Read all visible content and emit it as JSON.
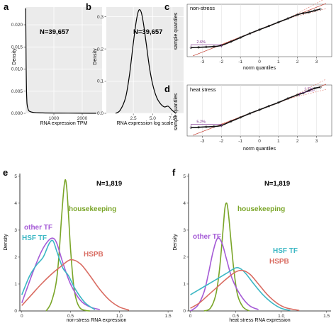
{
  "chart_data": [
    {
      "panel": "a",
      "type": "line",
      "xlabel": "RNA expression TPM",
      "ylabel": "Density",
      "annotation": "N=39,657",
      "xlim": [
        0,
        2700
      ],
      "ylim": [
        0,
        0.024
      ],
      "xticks": [
        1000,
        2000
      ],
      "yticks": [
        0.0,
        0.005,
        0.01,
        0.015,
        0.02
      ],
      "yticklabels": [
        "0.000",
        "0.005",
        "0.010",
        "0.015",
        "0.020"
      ],
      "series": [
        {
          "x": [
            0,
            8,
            20,
            40,
            80,
            200,
            600,
            1500,
            2500
          ],
          "y": [
            0.0235,
            0.0225,
            0.012,
            0.004,
            0.0012,
            0.0003,
            0.0001,
            5e-05,
            2e-05
          ]
        }
      ]
    },
    {
      "panel": "b",
      "type": "line",
      "xlabel": "RNA expression log scale",
      "ylabel": "Density",
      "annotation": "N=39,657",
      "xlim": [
        -1,
        9
      ],
      "ylim": [
        0,
        0.33
      ],
      "xticks": [
        2.5,
        5.0,
        7.5
      ],
      "xticklabels": [
        "2.5",
        "5.0",
        "7.5"
      ],
      "yticks": [
        0.0,
        0.1,
        0.2,
        0.3
      ],
      "yticklabels": [
        "0.0",
        "0.1",
        "0.2",
        "0.3"
      ],
      "series": [
        {
          "x": [
            0.2,
            0.8,
            1.5,
            2.0,
            2.5,
            2.9,
            3.2,
            3.5,
            3.8,
            4.2,
            4.6,
            5.0,
            5.5,
            6.0,
            6.5,
            7.0,
            7.5,
            8.0
          ],
          "y": [
            0.0,
            0.01,
            0.05,
            0.12,
            0.22,
            0.29,
            0.32,
            0.315,
            0.28,
            0.21,
            0.14,
            0.09,
            0.05,
            0.03,
            0.02,
            0.022,
            0.01,
            0.0
          ]
        }
      ]
    },
    {
      "panel": "c",
      "type": "scatter",
      "facet": "non-stress",
      "xlabel": "norm quantiles",
      "ylabel": "sample quantiles",
      "xlim": [
        -3.8,
        3.8
      ],
      "ylim": [
        -3.6,
        3.4
      ],
      "xticks": [
        -3,
        -2,
        -1,
        0,
        1,
        2,
        3
      ],
      "xticklabels": [
        "-3",
        "-2",
        "-1",
        "0",
        "1",
        "2",
        "3"
      ],
      "annotations": [
        "2.6%"
      ],
      "series": [
        {
          "x": [
            -3.6,
            -3.2,
            -2.8,
            -2.4,
            -2.0,
            -1.5,
            -1.0,
            -0.5,
            0.0,
            0.5,
            1.0,
            1.5,
            2.0,
            2.3,
            2.6,
            2.9,
            3.2
          ],
          "y": [
            -2.4,
            -2.35,
            -2.3,
            -2.25,
            -2.1,
            -1.6,
            -1.05,
            -0.5,
            0.0,
            0.5,
            1.0,
            1.5,
            2.0,
            2.2,
            2.35,
            2.55,
            2.75
          ]
        }
      ]
    },
    {
      "panel": "d",
      "type": "scatter",
      "facet": "heat stress",
      "xlabel": "norm quantiles",
      "ylabel": "sample quantiles",
      "xlim": [
        -3.8,
        3.8
      ],
      "ylim": [
        -3.6,
        3.4
      ],
      "xticks": [
        -3,
        -2,
        -1,
        0,
        1,
        2,
        3
      ],
      "xticklabels": [
        "-3",
        "-2",
        "-1",
        "0",
        "1",
        "2",
        "3"
      ],
      "annotations": [
        "5.2%",
        "1.7%"
      ],
      "series": [
        {
          "x": [
            -3.6,
            -3.2,
            -2.8,
            -2.4,
            -2.0,
            -1.5,
            -1.0,
            -0.5,
            0.0,
            0.5,
            1.0,
            1.5,
            2.0,
            2.3,
            2.6,
            2.9,
            3.2
          ],
          "y": [
            -2.45,
            -2.4,
            -2.35,
            -2.3,
            -2.15,
            -1.6,
            -1.05,
            -0.5,
            0.0,
            0.5,
            1.0,
            1.55,
            2.05,
            2.3,
            2.65,
            2.95,
            3.1
          ]
        }
      ]
    },
    {
      "panel": "e",
      "type": "line",
      "xlabel": "non-stress RNA expression",
      "ylabel": "Density",
      "annotation": "N=1,819",
      "xlim": [
        -0.02,
        1.55
      ],
      "ylim": [
        0,
        5.1
      ],
      "xticks": [
        0.0,
        0.5,
        1.0,
        1.5
      ],
      "xticklabels": [
        "0",
        "0.5",
        "1.0",
        "1.5"
      ],
      "yticks": [
        0,
        1,
        2,
        3,
        4,
        5
      ],
      "yticklabels": [
        "0",
        "1",
        "2",
        "3",
        "4",
        "5"
      ],
      "series": [
        {
          "name": "housekeeping",
          "color": "#7aa528",
          "x": [
            0.25,
            0.3,
            0.35,
            0.38,
            0.41,
            0.44,
            0.46,
            0.48,
            0.5,
            0.53,
            0.56,
            0.6,
            0.65,
            0.7
          ],
          "y": [
            0.0,
            0.3,
            1.0,
            2.0,
            3.6,
            4.8,
            4.6,
            3.5,
            2.3,
            1.0,
            0.4,
            0.1,
            0.02,
            0.0
          ]
        },
        {
          "name": "other TF",
          "color": "#a55bd6",
          "x": [
            0.0,
            0.05,
            0.12,
            0.2,
            0.27,
            0.32,
            0.36,
            0.42,
            0.5,
            0.6,
            0.7,
            0.8
          ],
          "y": [
            0.3,
            0.8,
            1.5,
            2.2,
            2.6,
            2.7,
            2.5,
            1.8,
            1.0,
            0.4,
            0.15,
            0.05
          ]
        },
        {
          "name": "HSF TF",
          "color": "#3bb7c4",
          "x": [
            0.0,
            0.08,
            0.15,
            0.22,
            0.28,
            0.32,
            0.36,
            0.42,
            0.48,
            0.55,
            0.65,
            0.75
          ],
          "y": [
            0.6,
            1.3,
            1.7,
            2.0,
            2.5,
            2.6,
            2.2,
            1.6,
            1.3,
            0.8,
            0.3,
            0.05
          ]
        },
        {
          "name": "HSPB",
          "color": "#d96b61",
          "x": [
            0.0,
            0.1,
            0.2,
            0.3,
            0.4,
            0.5,
            0.6,
            0.7,
            0.8,
            0.9,
            1.0,
            1.1
          ],
          "y": [
            0.2,
            0.6,
            1.0,
            1.35,
            1.65,
            1.9,
            1.75,
            1.3,
            0.8,
            0.4,
            0.15,
            0.03
          ]
        }
      ]
    },
    {
      "panel": "f",
      "type": "line",
      "xlabel": "heat stress RNA expression",
      "ylabel": "Density",
      "annotation": "N=1,819",
      "xlim": [
        -0.02,
        1.55
      ],
      "ylim": [
        0,
        5.1
      ],
      "xticks": [
        0.0,
        0.5,
        1.0,
        1.5
      ],
      "xticklabels": [
        "0",
        "0.5",
        "1.0",
        "1.5"
      ],
      "yticks": [
        0,
        1,
        2,
        3,
        4,
        5
      ],
      "yticklabels": [
        "0",
        "1",
        "2",
        "3",
        "4",
        "5"
      ],
      "series": [
        {
          "name": "housekeeping",
          "color": "#7aa528",
          "x": [
            0.15,
            0.22,
            0.28,
            0.32,
            0.36,
            0.38,
            0.4,
            0.42,
            0.45,
            0.48,
            0.52,
            0.58,
            0.65
          ],
          "y": [
            0.0,
            0.1,
            0.6,
            1.5,
            3.0,
            3.8,
            4.0,
            3.6,
            2.5,
            1.5,
            0.6,
            0.15,
            0.0
          ]
        },
        {
          "name": "other TF",
          "color": "#a55bd6",
          "x": [
            0.0,
            0.08,
            0.15,
            0.2,
            0.25,
            0.3,
            0.35,
            0.4,
            0.46,
            0.55,
            0.65,
            0.75
          ],
          "y": [
            0.0,
            0.2,
            0.7,
            1.4,
            2.2,
            2.7,
            2.5,
            1.9,
            1.2,
            0.6,
            0.2,
            0.05
          ]
        },
        {
          "name": "HSF TF",
          "color": "#3bb7c4",
          "x": [
            0.0,
            0.1,
            0.2,
            0.3,
            0.4,
            0.5,
            0.56,
            0.62,
            0.7,
            0.8,
            0.9,
            1.0,
            1.1
          ],
          "y": [
            0.6,
            0.8,
            1.0,
            1.2,
            1.4,
            1.6,
            1.55,
            1.35,
            1.0,
            0.6,
            0.3,
            0.1,
            0.02
          ]
        },
        {
          "name": "HSPB",
          "color": "#d96b61",
          "x": [
            0.0,
            0.1,
            0.2,
            0.3,
            0.4,
            0.5,
            0.58,
            0.66,
            0.75,
            0.85,
            0.95,
            1.05,
            1.2
          ],
          "y": [
            0.1,
            0.3,
            0.6,
            0.9,
            1.2,
            1.45,
            1.5,
            1.35,
            1.0,
            0.6,
            0.3,
            0.12,
            0.02
          ]
        }
      ]
    }
  ]
}
